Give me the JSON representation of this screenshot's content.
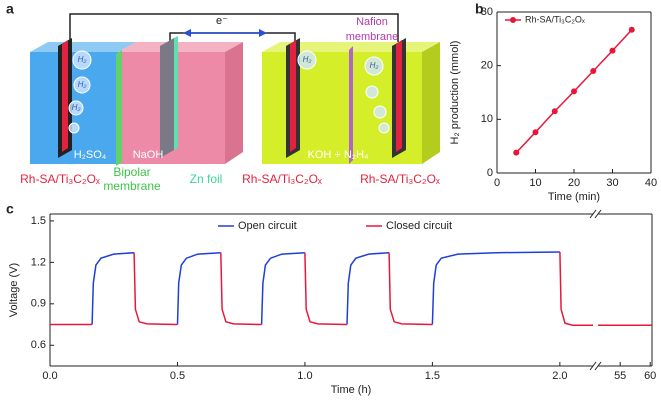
{
  "diagram": {
    "label": "a",
    "electron": "e⁻",
    "nafion_label": [
      "Nafion",
      "membrane"
    ],
    "left_electrolyte": "H₂SO₄",
    "middle_electrolyte": "NaOH",
    "right_electrolyte": "KOH + N₂H₄",
    "catalyst_labels": [
      "Rh-SA/Ti₃C₂Oₓ",
      "Rh-SA/Ti₃C₂Oₓ",
      "Rh-SA/Ti₃C₂Oₓ"
    ],
    "bipolar_label": [
      "Bipolar",
      "membrane"
    ],
    "zn_label": "Zn foil",
    "bubble_label": "H₂"
  },
  "chart_data": [
    {
      "type": "line",
      "label": "b",
      "marker": "circle",
      "xlabel": "Time (min)",
      "ylabel": "H₂ production (mmol)",
      "xlim": [
        0,
        40
      ],
      "xticks": [
        0,
        10,
        20,
        30,
        40
      ],
      "ylim": [
        0,
        30
      ],
      "yticks": [
        0,
        10,
        20,
        30
      ],
      "legend": "upper left",
      "series": [
        {
          "name": "Rh-SA/Ti₃C₂Oₓ",
          "color": "#e8173a",
          "x": [
            5,
            10,
            15,
            20,
            25,
            30,
            35
          ],
          "values": [
            3.8,
            7.6,
            11.5,
            15.2,
            19.0,
            22.8,
            26.7
          ]
        }
      ]
    },
    {
      "type": "line",
      "label": "c",
      "xlabel": "Time (h)",
      "ylabel": "Voltage (V)",
      "x_segments": [
        {
          "xlim": [
            0,
            2.13
          ],
          "xticks": [
            {
              "value": 0,
              "label": "0.0"
            },
            0.5,
            {
              "value": 1,
              "label": "1.0"
            },
            1.5,
            {
              "value": 2,
              "label": "2.0"
            }
          ]
        },
        {
          "xlim": [
            51.3,
            60.3
          ],
          "xticks": [
            55,
            60
          ]
        }
      ],
      "ylim": [
        0.45,
        1.55
      ],
      "yticks": [
        0.6,
        0.9,
        1.2,
        1.5
      ],
      "legend": "upper center",
      "series": [
        {
          "name": "Open circuit",
          "color": "#1f3fd6",
          "x": [
            0.165,
            0.17,
            0.18,
            0.2,
            0.25,
            0.33,
            null,
            0.5,
            0.505,
            0.515,
            0.535,
            0.58,
            0.67,
            null,
            0.83,
            0.835,
            0.845,
            0.865,
            0.91,
            1.0,
            null,
            1.165,
            1.17,
            1.18,
            1.2,
            1.25,
            1.33,
            null,
            1.5,
            1.505,
            1.515,
            1.535,
            1.6,
            1.75,
            2.0
          ],
          "values": [
            0.75,
            1.05,
            1.18,
            1.23,
            1.26,
            1.27,
            null,
            0.75,
            1.05,
            1.18,
            1.23,
            1.26,
            1.27,
            null,
            0.75,
            1.05,
            1.18,
            1.23,
            1.26,
            1.27,
            null,
            0.75,
            1.05,
            1.18,
            1.23,
            1.26,
            1.27,
            null,
            0.75,
            1.05,
            1.18,
            1.23,
            1.26,
            1.27,
            1.275
          ]
        },
        {
          "name": "Closed circuit",
          "color": "#e8173a",
          "x": [
            0,
            0.165,
            null,
            0.33,
            0.335,
            0.35,
            0.38,
            0.5,
            null,
            0.67,
            0.675,
            0.69,
            0.72,
            0.83,
            null,
            1.0,
            1.005,
            1.02,
            1.05,
            1.165,
            null,
            1.33,
            1.335,
            1.35,
            1.38,
            1.5,
            null,
            2.0,
            2.005,
            2.02,
            2.05,
            2.13,
            null,
            51.3,
            60.3
          ],
          "values": [
            0.75,
            0.75,
            null,
            1.27,
            0.86,
            0.77,
            0.755,
            0.75,
            null,
            1.27,
            0.86,
            0.77,
            0.755,
            0.75,
            null,
            1.27,
            0.86,
            0.77,
            0.755,
            0.75,
            null,
            1.27,
            0.86,
            0.77,
            0.755,
            0.75,
            null,
            1.275,
            0.86,
            0.76,
            0.745,
            0.745,
            null,
            0.745,
            0.745
          ]
        }
      ]
    }
  ]
}
